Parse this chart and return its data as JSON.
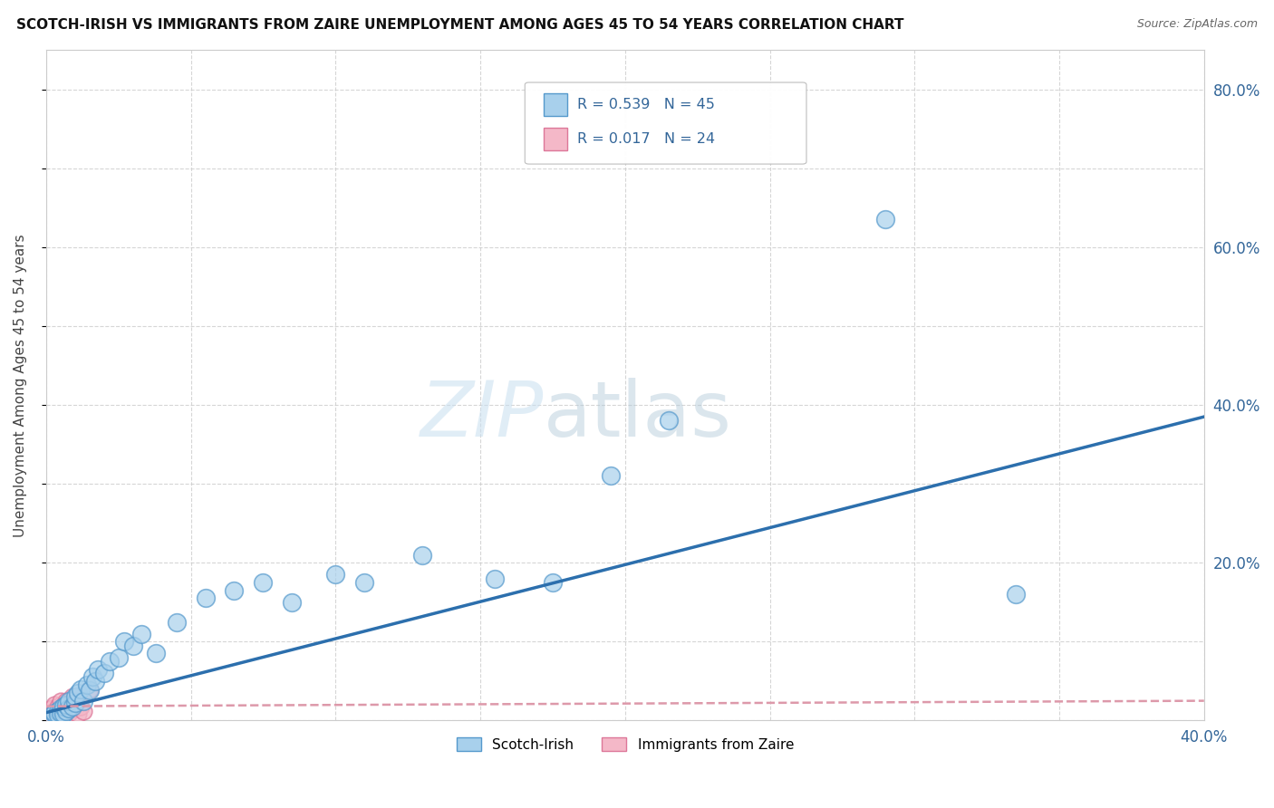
{
  "title": "SCOTCH-IRISH VS IMMIGRANTS FROM ZAIRE UNEMPLOYMENT AMONG AGES 45 TO 54 YEARS CORRELATION CHART",
  "source": "Source: ZipAtlas.com",
  "ylabel": "Unemployment Among Ages 45 to 54 years",
  "xlim": [
    0.0,
    0.4
  ],
  "ylim": [
    0.0,
    0.85
  ],
  "xtick_positions": [
    0.0,
    0.05,
    0.1,
    0.15,
    0.2,
    0.25,
    0.3,
    0.35,
    0.4
  ],
  "xticklabels": [
    "0.0%",
    "",
    "",
    "",
    "",
    "",
    "",
    "",
    "40.0%"
  ],
  "ytick_positions": [
    0.0,
    0.1,
    0.2,
    0.3,
    0.4,
    0.5,
    0.6,
    0.7,
    0.8
  ],
  "yticklabels_right": [
    "",
    "",
    "20.0%",
    "",
    "40.0%",
    "",
    "60.0%",
    "",
    "80.0%"
  ],
  "watermark_zip": "ZIP",
  "watermark_atlas": "atlas",
  "color_scotch_fill": "#a8d0ec",
  "color_scotch_edge": "#5599cc",
  "color_zaire_fill": "#f4b8c8",
  "color_zaire_edge": "#dd7799",
  "color_line_scotch": "#2c6fad",
  "color_line_zaire": "#dd99aa",
  "scotch_x": [
    0.002,
    0.003,
    0.003,
    0.004,
    0.004,
    0.005,
    0.005,
    0.006,
    0.006,
    0.007,
    0.007,
    0.008,
    0.008,
    0.009,
    0.01,
    0.01,
    0.011,
    0.012,
    0.013,
    0.014,
    0.015,
    0.016,
    0.017,
    0.018,
    0.02,
    0.022,
    0.025,
    0.027,
    0.03,
    0.033,
    0.038,
    0.045,
    0.055,
    0.065,
    0.075,
    0.085,
    0.1,
    0.11,
    0.13,
    0.155,
    0.175,
    0.195,
    0.215,
    0.29,
    0.335
  ],
  "scotch_y": [
    0.005,
    0.008,
    0.01,
    0.012,
    0.007,
    0.015,
    0.01,
    0.008,
    0.018,
    0.012,
    0.02,
    0.015,
    0.025,
    0.018,
    0.022,
    0.03,
    0.035,
    0.04,
    0.025,
    0.045,
    0.038,
    0.055,
    0.05,
    0.065,
    0.06,
    0.075,
    0.08,
    0.1,
    0.095,
    0.11,
    0.085,
    0.125,
    0.155,
    0.165,
    0.175,
    0.15,
    0.185,
    0.175,
    0.21,
    0.18,
    0.175,
    0.31,
    0.38,
    0.635,
    0.16
  ],
  "zaire_x": [
    0.001,
    0.001,
    0.002,
    0.002,
    0.003,
    0.003,
    0.003,
    0.004,
    0.004,
    0.005,
    0.005,
    0.006,
    0.006,
    0.007,
    0.007,
    0.008,
    0.008,
    0.009,
    0.01,
    0.01,
    0.011,
    0.012,
    0.013,
    0.015
  ],
  "zaire_y": [
    0.005,
    0.01,
    0.008,
    0.015,
    0.005,
    0.012,
    0.02,
    0.008,
    0.018,
    0.01,
    0.025,
    0.008,
    0.015,
    0.012,
    0.025,
    0.01,
    0.02,
    0.03,
    0.015,
    0.025,
    0.008,
    0.018,
    0.012,
    0.04
  ],
  "line_scotch_x0": 0.0,
  "line_scotch_y0": 0.01,
  "line_scotch_x1": 0.4,
  "line_scotch_y1": 0.385,
  "line_zaire_x0": 0.0,
  "line_zaire_y0": 0.018,
  "line_zaire_x1": 0.4,
  "line_zaire_y1": 0.025,
  "background_color": "#ffffff",
  "grid_color": "#cccccc"
}
